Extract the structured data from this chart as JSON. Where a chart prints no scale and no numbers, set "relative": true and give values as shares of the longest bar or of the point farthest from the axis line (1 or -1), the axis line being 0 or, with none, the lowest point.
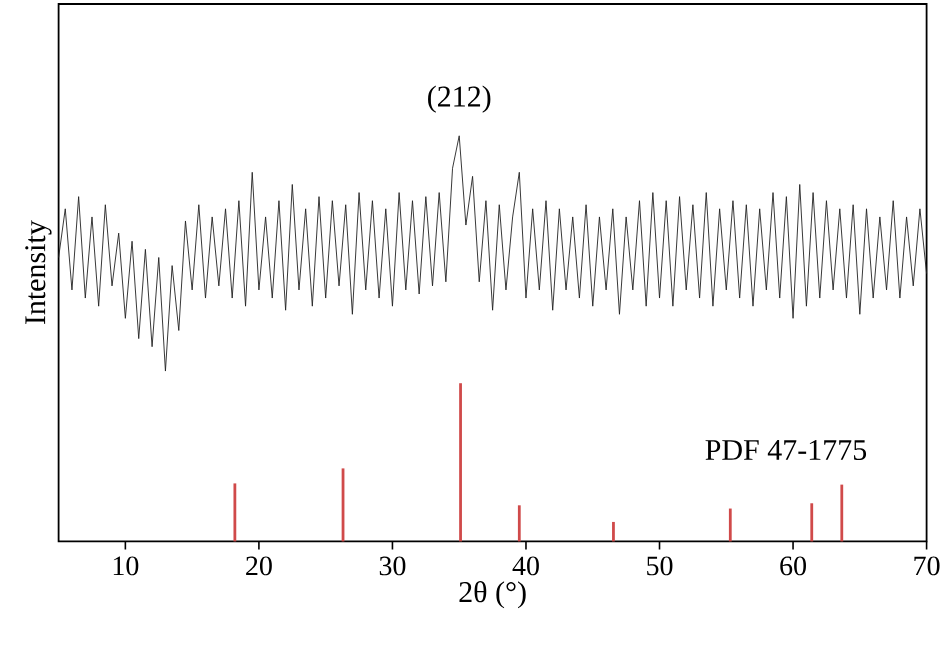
{
  "chart_data": {
    "type": "line",
    "xlabel": "2θ (°)",
    "ylabel": "Intensity",
    "relative": true,
    "tick_labels": "x",
    "xlim": [
      5,
      70
    ],
    "xticks": [
      10,
      20,
      30,
      40,
      50,
      60,
      70
    ],
    "annotations": [
      {
        "text": "(212)",
        "x": 35,
        "y": 1.0
      }
    ],
    "series": [
      {
        "color": "#222222",
        "x": [
          5,
          5.5,
          6,
          6.5,
          7,
          7.5,
          8,
          8.5,
          9,
          9.5,
          10,
          10.5,
          11,
          11.5,
          12,
          12.5,
          13,
          13.5,
          14,
          14.5,
          15,
          15.5,
          16,
          16.5,
          17,
          17.5,
          18,
          18.5,
          19,
          19.5,
          20,
          20.5,
          21,
          21.5,
          22,
          22.5,
          23,
          23.5,
          24,
          24.5,
          25,
          25.5,
          26,
          26.5,
          27,
          27.5,
          28,
          28.5,
          29,
          29.5,
          30,
          30.5,
          31,
          31.5,
          32,
          32.5,
          33,
          33.5,
          34,
          34.5,
          35,
          35.5,
          36,
          36.5,
          37,
          37.5,
          38,
          38.5,
          39,
          39.5,
          40,
          40.5,
          41,
          41.5,
          42,
          42.5,
          43,
          43.5,
          44,
          44.5,
          45,
          45.5,
          46,
          46.5,
          47,
          47.5,
          48,
          48.5,
          49,
          49.5,
          50,
          50.5,
          51,
          51.5,
          52,
          52.5,
          53,
          53.5,
          54,
          54.5,
          55,
          55.5,
          56,
          56.5,
          57,
          57.5,
          58,
          58.5,
          59,
          59.5,
          60,
          60.5,
          61,
          61.5,
          62,
          62.5,
          63,
          63.5,
          64,
          64.5,
          65,
          65.5,
          66,
          66.5,
          67,
          67.5,
          68,
          68.5,
          69,
          69.5,
          70
        ],
        "values": [
          0.7,
          0.82,
          0.62,
          0.85,
          0.6,
          0.8,
          0.58,
          0.83,
          0.63,
          0.76,
          0.55,
          0.74,
          0.5,
          0.72,
          0.48,
          0.7,
          0.42,
          0.68,
          0.52,
          0.79,
          0.62,
          0.83,
          0.6,
          0.8,
          0.63,
          0.82,
          0.6,
          0.84,
          0.58,
          0.91,
          0.62,
          0.8,
          0.6,
          0.84,
          0.57,
          0.88,
          0.62,
          0.82,
          0.58,
          0.85,
          0.6,
          0.84,
          0.63,
          0.83,
          0.56,
          0.86,
          0.62,
          0.84,
          0.6,
          0.82,
          0.58,
          0.86,
          0.62,
          0.84,
          0.61,
          0.85,
          0.63,
          0.86,
          0.64,
          0.92,
          1.0,
          0.78,
          0.9,
          0.64,
          0.84,
          0.57,
          0.83,
          0.62,
          0.8,
          0.91,
          0.6,
          0.82,
          0.62,
          0.84,
          0.57,
          0.82,
          0.62,
          0.8,
          0.6,
          0.83,
          0.58,
          0.8,
          0.62,
          0.82,
          0.56,
          0.8,
          0.62,
          0.84,
          0.58,
          0.86,
          0.6,
          0.84,
          0.58,
          0.85,
          0.62,
          0.83,
          0.6,
          0.86,
          0.58,
          0.82,
          0.62,
          0.84,
          0.6,
          0.83,
          0.58,
          0.82,
          0.62,
          0.86,
          0.6,
          0.85,
          0.55,
          0.88,
          0.58,
          0.86,
          0.6,
          0.84,
          0.62,
          0.82,
          0.6,
          0.83,
          0.56,
          0.82,
          0.6,
          0.8,
          0.62,
          0.84,
          0.6,
          0.8,
          0.63,
          0.82,
          0.66
        ]
      },
      {
        "type": "bar",
        "name": "PDF 47-1775",
        "color": "#d04a4a",
        "x": [
          18.2,
          26.3,
          35.1,
          39.5,
          46.55,
          55.3,
          61.4,
          63.65
        ],
        "values": [
          0.143,
          0.18,
          0.39,
          0.089,
          0.048,
          0.081,
          0.094,
          0.14
        ]
      }
    ]
  }
}
